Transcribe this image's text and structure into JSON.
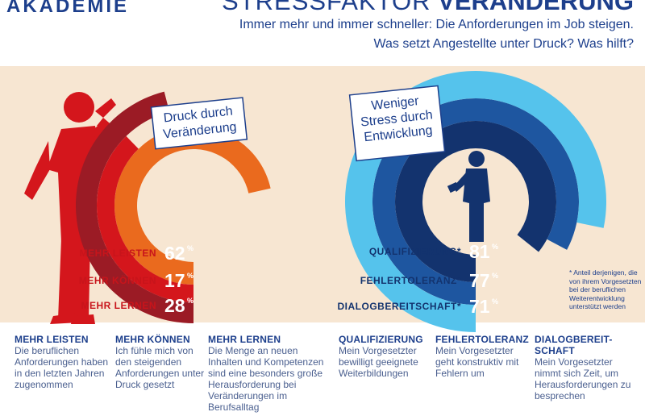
{
  "header": {
    "logo": "AKADEMIE",
    "title_light": "STRESSFAKTOR",
    "title_bold": "VERÄNDERUNG",
    "subtitle1": "Immer mehr und immer schneller: Die Anforderungen im Job steigen.",
    "subtitle2": "Was setzt Angestellte unter Druck? Was hilft?"
  },
  "colors": {
    "panel": "#f7e6d2",
    "red_light": "#ea6a1e",
    "red_mid": "#d4161c",
    "red_dark": "#9b1b25",
    "blue_light": "#55c3ec",
    "blue_mid": "#1e56a0",
    "blue_dark": "#13336e",
    "text_blue": "#1d3f8c",
    "text_red": "#c8141b"
  },
  "chart_data": [
    {
      "type": "pie",
      "title": "Druck durch Veränderung",
      "categories": [
        "MEHR LEISTEN",
        "MEHR KÖNNEN",
        "MEHR LERNEN"
      ],
      "values": [
        62,
        17,
        28
      ],
      "unit": "%"
    },
    {
      "type": "pie",
      "title": "Weniger Stress durch Entwicklung",
      "categories": [
        "QUALIFIZIERUNG*",
        "FEHLERTOLERANZ*",
        "DIALOGBEREITSCHAFT*"
      ],
      "values": [
        81,
        77,
        71
      ],
      "unit": "%"
    }
  ],
  "footnote": "* Anteil derjenigen, die von ihrem Vorgesetzten bei der beruflichen Weiterentwicklung unterstützt werden",
  "descriptions": [
    {
      "heading": "MEHR LEISTEN",
      "text": "Die beruflichen Anforderungen haben in den letzten Jahren zugenommen"
    },
    {
      "heading": "MEHR KÖNNEN",
      "text": "Ich fühle mich von den steigenden Anforderungen unter Druck gesetzt"
    },
    {
      "heading": "MEHR LERNEN",
      "text": "Die Menge an neuen Inhalten und Kompetenzen sind eine besonders große Herausforderung bei Veränderungen im Berufsalltag"
    },
    {
      "heading": "QUALIFIZIERUNG",
      "text": "Mein Vorgesetzter bewilligt geeignete Weiterbildungen"
    },
    {
      "heading": "FEHLERTOLERANZ",
      "text": "Mein Vorgesetzter geht konstruktiv mit Fehlern um"
    },
    {
      "heading": "DIALOGBEREIT-SCHAFT",
      "text": "Mein Vorgesetzter nimmt sich Zeit, um Herausforderungen zu besprechen"
    }
  ]
}
